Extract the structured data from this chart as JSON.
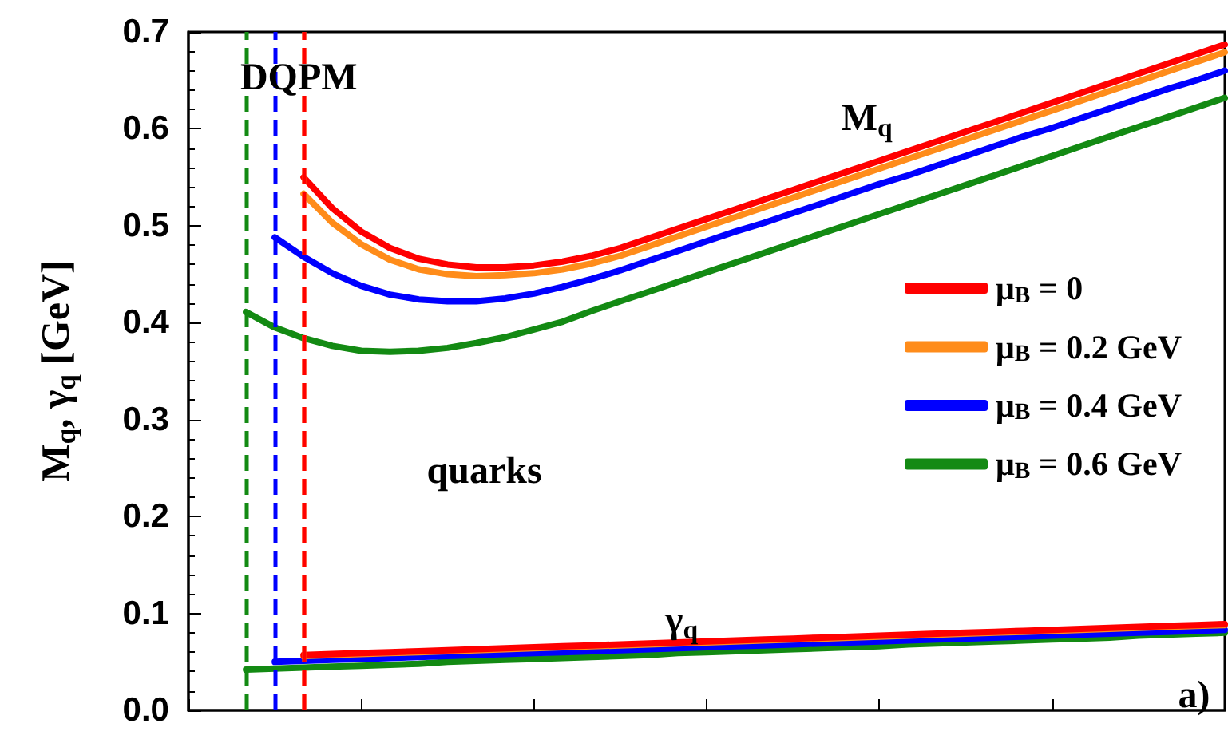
{
  "chart_data": {
    "type": "line",
    "ylabel": "M$_{q}$, γ$_{q}$ [GeV]",
    "annotations": [
      "DQPM",
      "M$_{q}$",
      "quarks",
      "γ$_{q}$",
      "a)"
    ],
    "categories": [
      null,
      null,
      null,
      null,
      null,
      null,
      null,
      null,
      null,
      null,
      null,
      null,
      null,
      null,
      null,
      null,
      null,
      null,
      null,
      null,
      null,
      null,
      null,
      null,
      null,
      null,
      null,
      null,
      null,
      null,
      null,
      null,
      null,
      null,
      null,
      null,
      null
    ],
    "ylim": [
      0,
      0.7
    ],
    "yticks": [
      {
        "value": 0,
        "label": "0.0"
      },
      0.1,
      0.2,
      0.3,
      0.4,
      0.5,
      0.6,
      0.7
    ],
    "tick_labels": "y",
    "grid": false,
    "legend": "right",
    "marker": "none",
    "line_style": "solid",
    "series": [
      {
        "name": "μ$_{B}$ = 0",
        "color": "#ff0000",
        "values": [
          null,
          null,
          null,
          null,
          0.55,
          0.518,
          0.494,
          0.477,
          0.466,
          0.46,
          0.457,
          0.457,
          0.459,
          0.463,
          0.469,
          0.477,
          0.487,
          0.497,
          0.507,
          0.517,
          0.527,
          0.537,
          0.547,
          0.557,
          0.567,
          0.577,
          0.587,
          0.597,
          0.607,
          0.617,
          0.627,
          0.637,
          0.647,
          0.657,
          0.667,
          0.677,
          0.687
        ]
      },
      {
        "name": "μ$_{B}$ = 0.2 GeV",
        "color": "#ff8c1a",
        "values": [
          null,
          null,
          null,
          null,
          0.533,
          0.503,
          0.481,
          0.465,
          0.455,
          0.45,
          0.448,
          0.449,
          0.451,
          0.455,
          0.461,
          0.469,
          0.479,
          0.489,
          0.499,
          0.509,
          0.519,
          0.529,
          0.539,
          0.549,
          0.559,
          0.569,
          0.579,
          0.589,
          0.599,
          0.609,
          0.619,
          0.629,
          0.639,
          0.649,
          0.659,
          0.669,
          0.679
        ]
      },
      {
        "name": "μ$_{B}$ = 0.4 GeV",
        "color": "#0000ff",
        "values": [
          null,
          null,
          null,
          0.488,
          0.468,
          0.451,
          0.438,
          0.429,
          0.424,
          0.422,
          0.422,
          0.425,
          0.43,
          0.437,
          0.445,
          0.454,
          0.464,
          0.474,
          0.484,
          0.494,
          0.503,
          0.513,
          0.523,
          0.533,
          0.543,
          0.552,
          0.562,
          0.572,
          0.582,
          0.592,
          0.601,
          0.611,
          0.621,
          0.631,
          0.641,
          0.65,
          0.66
        ]
      },
      {
        "name": "μ$_{B}$ = 0.6 GeV",
        "color": "#138a13",
        "values": [
          null,
          null,
          0.411,
          0.395,
          0.384,
          0.376,
          0.371,
          0.37,
          0.371,
          0.374,
          0.379,
          0.385,
          0.393,
          0.401,
          0.412,
          0.422,
          0.432,
          0.442,
          0.452,
          0.462,
          0.472,
          0.482,
          0.492,
          0.502,
          0.512,
          0.522,
          0.532,
          0.542,
          0.552,
          0.562,
          0.572,
          0.582,
          0.592,
          0.602,
          0.612,
          0.622,
          0.632
        ]
      },
      {
        "color": "#138a13",
        "values": [
          null,
          null,
          0.042,
          0.043,
          0.044,
          0.045,
          0.046,
          0.047,
          0.048,
          0.05,
          0.051,
          0.052,
          0.053,
          0.054,
          0.055,
          0.056,
          0.057,
          0.059,
          0.06,
          0.061,
          0.062,
          0.063,
          0.064,
          0.065,
          0.066,
          0.068,
          0.069,
          0.07,
          0.071,
          0.072,
          0.073,
          0.074,
          0.075,
          0.077,
          0.078,
          0.079,
          0.08
        ]
      },
      {
        "color": "#0000ff",
        "values": [
          null,
          null,
          null,
          0.05,
          0.051,
          0.052,
          0.053,
          0.054,
          0.055,
          0.056,
          0.057,
          0.058,
          0.059,
          0.06,
          0.061,
          0.062,
          0.063,
          0.064,
          0.065,
          0.066,
          0.067,
          0.068,
          0.069,
          0.07,
          0.071,
          0.072,
          0.073,
          0.074,
          0.075,
          0.076,
          0.077,
          0.078,
          0.079,
          0.08,
          0.081,
          0.082,
          0.083
        ]
      },
      {
        "color": "#ff8c1a",
        "values": [
          null,
          null,
          null,
          null,
          0.056,
          0.057,
          0.058,
          0.059,
          0.06,
          0.061,
          0.062,
          0.063,
          0.064,
          0.065,
          0.066,
          0.067,
          0.068,
          0.069,
          0.07,
          0.071,
          0.072,
          0.073,
          0.074,
          0.075,
          0.076,
          0.077,
          0.078,
          0.079,
          0.08,
          0.081,
          0.082,
          0.083,
          0.084,
          0.085,
          0.086,
          0.087,
          0.088
        ]
      },
      {
        "color": "#ff0000",
        "values": [
          null,
          null,
          null,
          null,
          0.057,
          0.058,
          0.059,
          0.06,
          0.061,
          0.062,
          0.063,
          0.064,
          0.065,
          0.066,
          0.067,
          0.068,
          0.069,
          0.07,
          0.071,
          0.072,
          0.073,
          0.074,
          0.075,
          0.076,
          0.077,
          0.078,
          0.079,
          0.08,
          0.081,
          0.082,
          0.083,
          0.084,
          0.085,
          0.086,
          0.087,
          0.088,
          0.089
        ]
      }
    ]
  }
}
